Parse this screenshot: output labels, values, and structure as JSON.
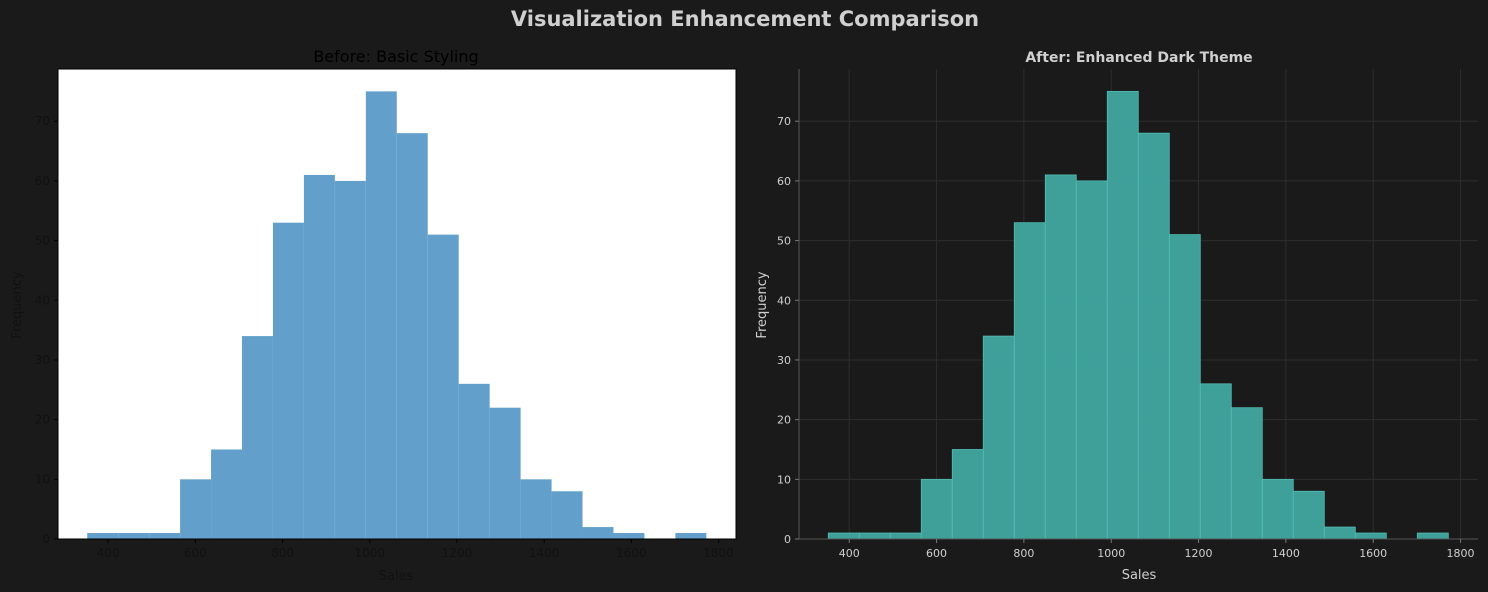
{
  "figure": {
    "title": "Visualization Enhancement Comparison",
    "background": "#1a1a1a"
  },
  "chart_data": [
    {
      "type": "bar",
      "title": "Before: Basic Styling",
      "xlabel": "Sales",
      "ylabel": "Frequency",
      "bin_edges": [
        352,
        423,
        494,
        565,
        636,
        707,
        778,
        849,
        920,
        991,
        1062,
        1133,
        1204,
        1275,
        1346,
        1417,
        1488,
        1559,
        1630,
        1701,
        1772
      ],
      "values": [
        1,
        1,
        1,
        10,
        15,
        34,
        53,
        61,
        60,
        75,
        68,
        51,
        26,
        22,
        10,
        8,
        2,
        1,
        0,
        1
      ],
      "xlim": [
        285,
        1840
      ],
      "ylim": [
        0,
        78.75
      ],
      "xticks": [
        400,
        600,
        800,
        1000,
        1200,
        1400,
        1600,
        1800
      ],
      "yticks": [
        0,
        10,
        20,
        30,
        40,
        50,
        60,
        70
      ],
      "grid": false,
      "colors": {
        "bar": "#62a0cb",
        "plot_bg": "#ffffff",
        "axis": "#000000"
      }
    },
    {
      "type": "bar",
      "title": "After: Enhanced Dark Theme",
      "xlabel": "Sales",
      "ylabel": "Frequency",
      "bin_edges": [
        352,
        423,
        494,
        565,
        636,
        707,
        778,
        849,
        920,
        991,
        1062,
        1133,
        1204,
        1275,
        1346,
        1417,
        1488,
        1559,
        1630,
        1701,
        1772
      ],
      "values": [
        1,
        1,
        1,
        10,
        15,
        34,
        53,
        61,
        60,
        75,
        68,
        51,
        26,
        22,
        10,
        8,
        2,
        1,
        0,
        1
      ],
      "xlim": [
        285,
        1840
      ],
      "ylim": [
        0,
        78.75
      ],
      "xticks": [
        400,
        600,
        800,
        1000,
        1200,
        1400,
        1600,
        1800
      ],
      "yticks": [
        0,
        10,
        20,
        30,
        40,
        50,
        60,
        70
      ],
      "grid": true,
      "colors": {
        "bar": "#40a8a0",
        "bar_edge": "#52bdb4",
        "plot_bg": "#1a1a1a",
        "axis": "#555555",
        "grid": "#2e2e2e"
      }
    }
  ]
}
